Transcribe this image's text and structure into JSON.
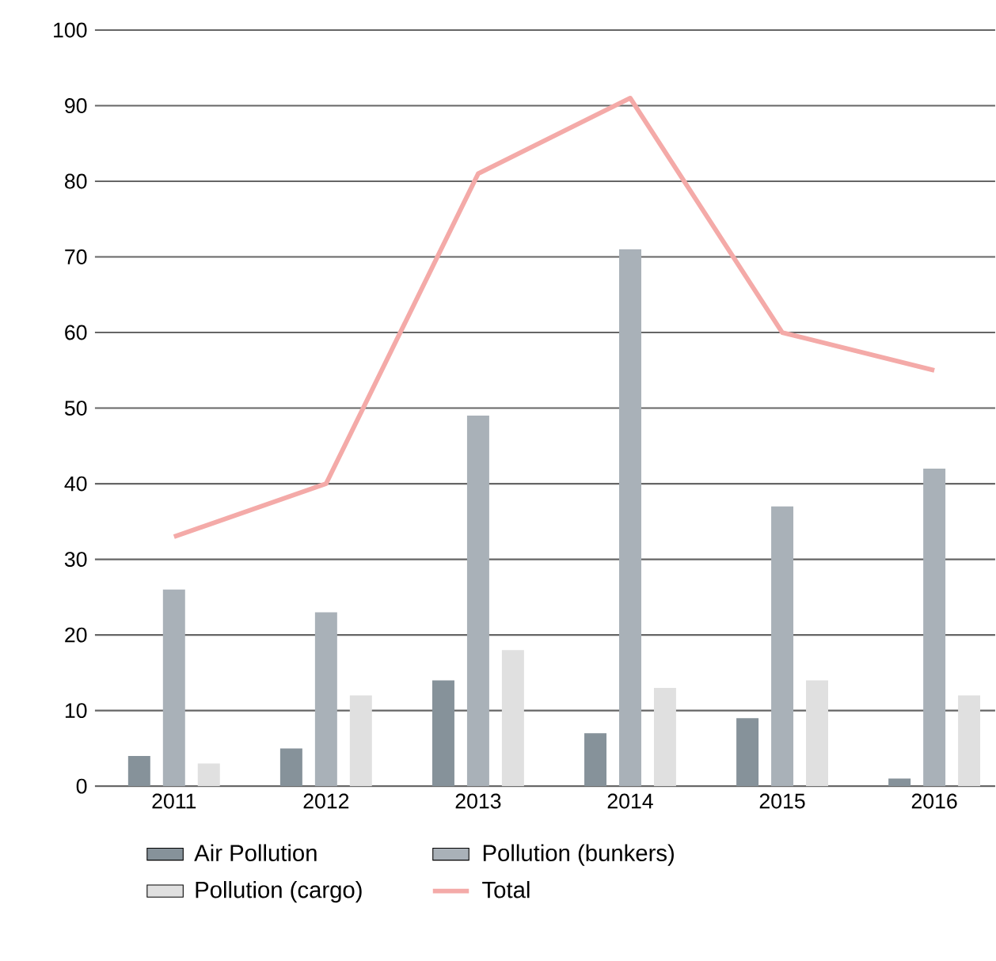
{
  "chart_data": {
    "type": "bar",
    "categories": [
      "2011",
      "2012",
      "2013",
      "2014",
      "2015",
      "2016"
    ],
    "series": [
      {
        "name": "Air Pollution",
        "color": "#86929a",
        "values": [
          4,
          5,
          14,
          7,
          9,
          1
        ]
      },
      {
        "name": "Pollution (bunkers)",
        "color": "#a9b1b8",
        "values": [
          26,
          23,
          49,
          71,
          37,
          42
        ]
      },
      {
        "name": "Pollution (cargo)",
        "color": "#e0e0e0",
        "values": [
          3,
          12,
          18,
          13,
          14,
          12
        ]
      },
      {
        "name": "Total",
        "type": "line",
        "color": "#f4aaa8",
        "values": [
          33,
          40,
          81,
          91,
          60,
          55
        ]
      }
    ],
    "ylim": [
      0,
      100
    ],
    "yticks": [
      0,
      10,
      20,
      30,
      40,
      50,
      60,
      70,
      80,
      90,
      100
    ],
    "grid": "y",
    "legend": "bottom"
  }
}
